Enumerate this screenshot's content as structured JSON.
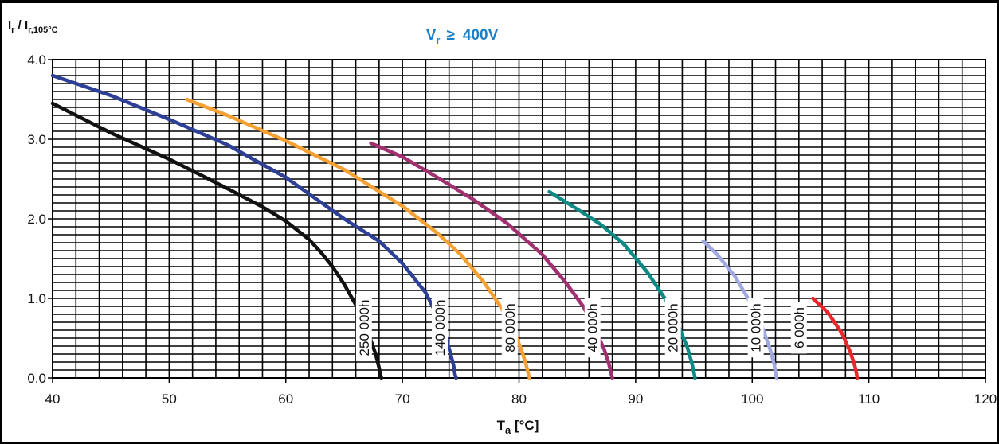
{
  "chart_data": {
    "type": "line",
    "title": "400V",
    "title_prefix": "V",
    "title_sub": "r",
    "title_operator": "≥",
    "title_color": "#1e7fc7",
    "ylabel": {
      "main1": "I",
      "sub1": "r",
      "sep": " / I",
      "sub2": "r,105°C"
    },
    "xlabel": {
      "main": "T",
      "sub": "a",
      "unit": " [°C]"
    },
    "xlim": [
      40,
      120
    ],
    "ylim": [
      0,
      4
    ],
    "grid": true,
    "x_ticks": [
      "40",
      "50",
      "60",
      "70",
      "80",
      "90",
      "100",
      "110",
      "120"
    ],
    "y_ticks": [
      "0.0",
      "1.0",
      "2.0",
      "3.0",
      "4.0"
    ],
    "series": [
      {
        "name": "250 000h",
        "color": "#111111",
        "label_x": 66.7,
        "x": [
          40,
          45,
          50,
          55,
          58,
          60,
          62,
          63,
          64,
          65,
          66,
          66.7,
          67.3,
          67.7,
          68.0,
          68.1,
          68.2
        ],
        "y": [
          3.45,
          3.08,
          2.75,
          2.38,
          2.15,
          1.97,
          1.74,
          1.58,
          1.4,
          1.18,
          0.92,
          0.7,
          0.47,
          0.3,
          0.13,
          0.05,
          0.0
        ]
      },
      {
        "name": "140 000h",
        "color": "#2e3f96",
        "label_x": 73.2,
        "x": [
          40,
          45,
          50,
          55,
          60,
          65,
          68,
          70,
          72,
          73,
          73.7,
          74.1,
          74.4,
          74.5,
          74.6
        ],
        "y": [
          3.8,
          3.55,
          3.25,
          2.93,
          2.52,
          2.0,
          1.72,
          1.44,
          1.07,
          0.78,
          0.53,
          0.32,
          0.15,
          0.05,
          0.0
        ]
      },
      {
        "name": "80 000h",
        "color": "#f5a033",
        "label_x": 79.2,
        "x": [
          51.5,
          55,
          60,
          65,
          70,
          73,
          75,
          77,
          78.5,
          79.5,
          80.2,
          80.6,
          80.8,
          80.9
        ],
        "y": [
          3.5,
          3.3,
          2.98,
          2.62,
          2.16,
          1.82,
          1.55,
          1.2,
          0.88,
          0.6,
          0.36,
          0.17,
          0.05,
          0.0
        ]
      },
      {
        "name": "40 000h",
        "color": "#a03070",
        "label_x": 86.3,
        "x": [
          67.3,
          70,
          73,
          76,
          79,
          82,
          84,
          85.5,
          86.5,
          87.3,
          87.7,
          87.9,
          88.0
        ],
        "y": [
          2.95,
          2.78,
          2.52,
          2.25,
          1.94,
          1.55,
          1.2,
          0.9,
          0.62,
          0.36,
          0.18,
          0.06,
          0.0
        ]
      },
      {
        "name": "20 000h",
        "color": "#0e8a86",
        "label_x": 93.2,
        "x": [
          82.6,
          85,
          87,
          89,
          91,
          92.5,
          93.6,
          94.4,
          94.8,
          95.0,
          95.1
        ],
        "y": [
          2.34,
          2.12,
          1.93,
          1.68,
          1.33,
          1.0,
          0.68,
          0.4,
          0.2,
          0.07,
          0.0
        ]
      },
      {
        "name": "10 000h",
        "color": "#a0a8e0",
        "label_x": 100.3,
        "x": [
          95.8,
          97,
          98.5,
          99.8,
          100.8,
          101.5,
          101.9,
          102.0,
          102.1
        ],
        "y": [
          1.72,
          1.55,
          1.28,
          0.96,
          0.66,
          0.38,
          0.16,
          0.06,
          0.0
        ]
      },
      {
        "name": "6 000h",
        "color": "#e8282a",
        "label_x": 104.0,
        "x": [
          105.2,
          106.5,
          107.7,
          108.4,
          108.8,
          108.95,
          109.0
        ],
        "y": [
          1.0,
          0.82,
          0.56,
          0.33,
          0.15,
          0.05,
          0.0
        ]
      }
    ]
  }
}
